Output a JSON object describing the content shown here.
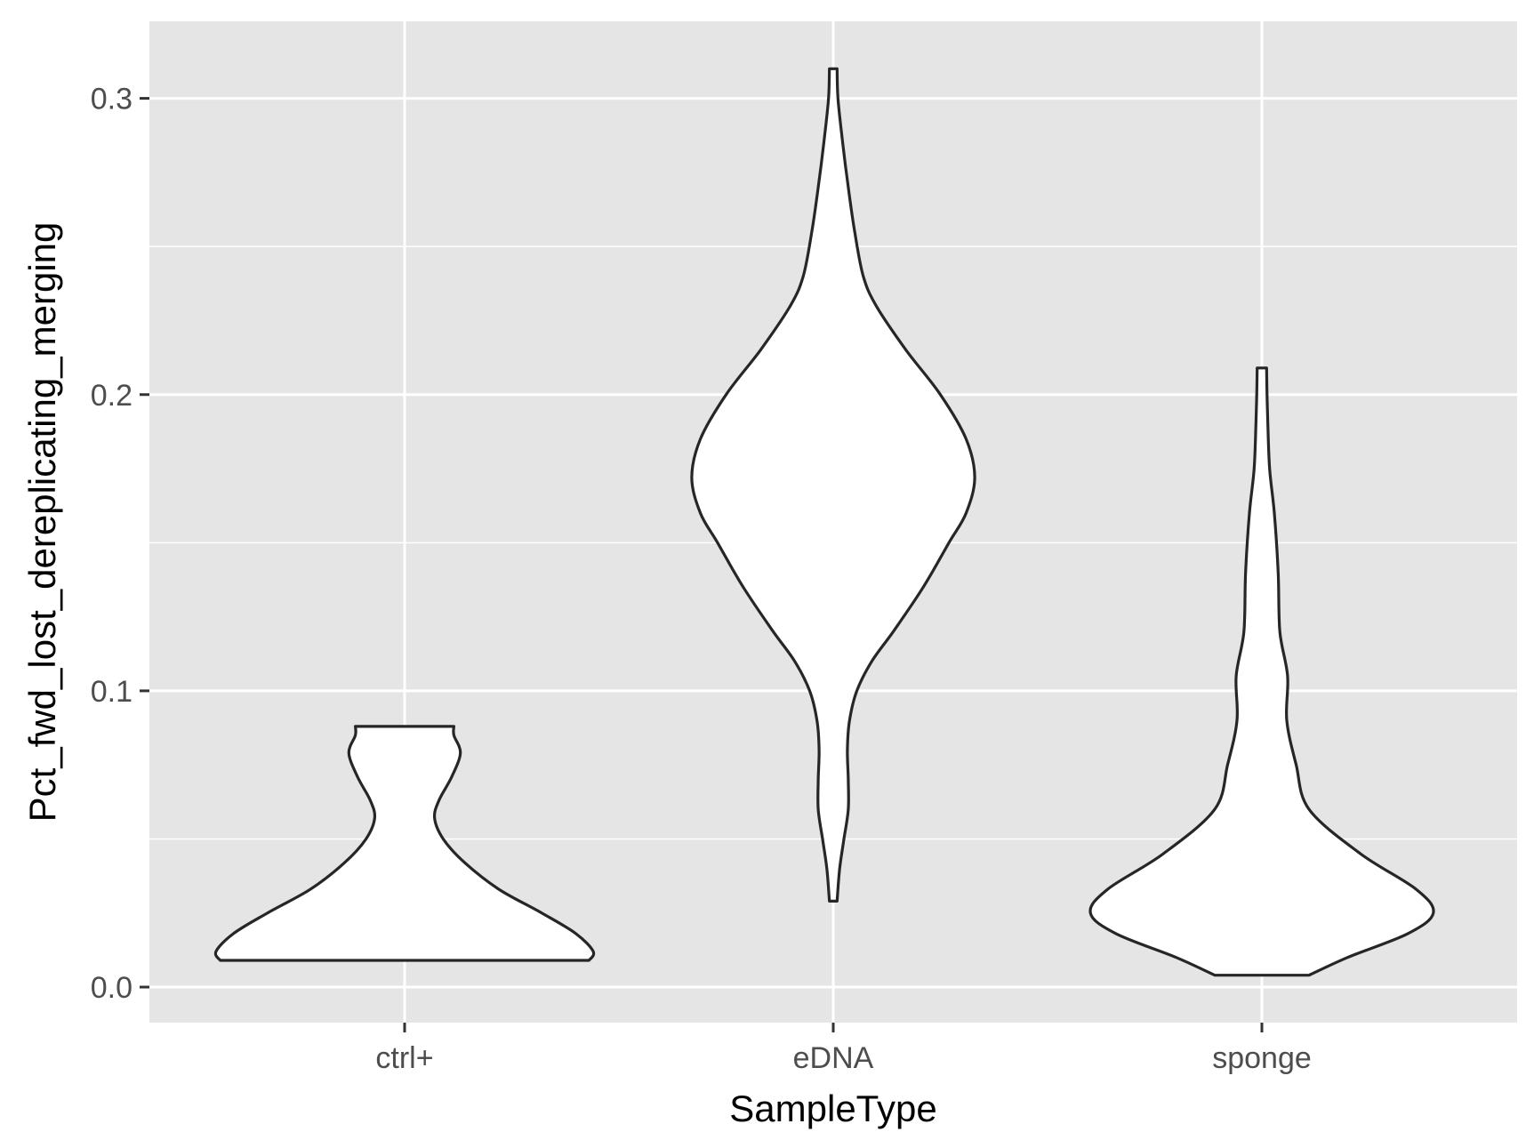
{
  "chart_data": {
    "type": "violin",
    "xlabel": "SampleType",
    "ylabel": "Pct_fwd_lost_dereplicating_merging",
    "categories": [
      "ctrl+",
      "eDNA",
      "sponge"
    ],
    "y_ticks": [
      "0.0",
      "0.1",
      "0.2",
      "0.3"
    ],
    "y_tick_values": [
      0.0,
      0.1,
      0.2,
      0.3
    ],
    "ylim": [
      -0.012,
      0.326
    ],
    "grid": true,
    "panel_background": "#e5e5e5",
    "violins": [
      {
        "category": "ctrl+",
        "y_min": 0.009,
        "y_max": 0.088,
        "profile": [
          [
            0.009,
            0.43
          ],
          [
            0.012,
            0.44
          ],
          [
            0.018,
            0.4
          ],
          [
            0.025,
            0.32
          ],
          [
            0.033,
            0.22
          ],
          [
            0.042,
            0.14
          ],
          [
            0.05,
            0.09
          ],
          [
            0.057,
            0.07
          ],
          [
            0.063,
            0.08
          ],
          [
            0.071,
            0.11
          ],
          [
            0.079,
            0.13
          ],
          [
            0.085,
            0.115
          ],
          [
            0.088,
            0.115
          ]
        ]
      },
      {
        "category": "eDNA",
        "y_min": 0.029,
        "y_max": 0.31,
        "profile": [
          [
            0.029,
            0.009
          ],
          [
            0.04,
            0.015
          ],
          [
            0.05,
            0.025
          ],
          [
            0.06,
            0.035
          ],
          [
            0.07,
            0.035
          ],
          [
            0.08,
            0.033
          ],
          [
            0.09,
            0.038
          ],
          [
            0.1,
            0.055
          ],
          [
            0.11,
            0.09
          ],
          [
            0.12,
            0.14
          ],
          [
            0.135,
            0.21
          ],
          [
            0.15,
            0.27
          ],
          [
            0.16,
            0.31
          ],
          [
            0.172,
            0.33
          ],
          [
            0.185,
            0.31
          ],
          [
            0.2,
            0.25
          ],
          [
            0.215,
            0.17
          ],
          [
            0.23,
            0.1
          ],
          [
            0.24,
            0.07
          ],
          [
            0.255,
            0.05
          ],
          [
            0.27,
            0.035
          ],
          [
            0.285,
            0.022
          ],
          [
            0.3,
            0.011
          ],
          [
            0.31,
            0.009
          ]
        ]
      },
      {
        "category": "sponge",
        "y_min": 0.004,
        "y_max": 0.209,
        "profile": [
          [
            0.004,
            0.11
          ],
          [
            0.01,
            0.2
          ],
          [
            0.018,
            0.34
          ],
          [
            0.025,
            0.4
          ],
          [
            0.033,
            0.36
          ],
          [
            0.045,
            0.23
          ],
          [
            0.06,
            0.11
          ],
          [
            0.075,
            0.08
          ],
          [
            0.09,
            0.058
          ],
          [
            0.105,
            0.06
          ],
          [
            0.12,
            0.042
          ],
          [
            0.14,
            0.038
          ],
          [
            0.16,
            0.029
          ],
          [
            0.175,
            0.018
          ],
          [
            0.19,
            0.014
          ],
          [
            0.2,
            0.012
          ],
          [
            0.209,
            0.011
          ]
        ]
      }
    ]
  }
}
